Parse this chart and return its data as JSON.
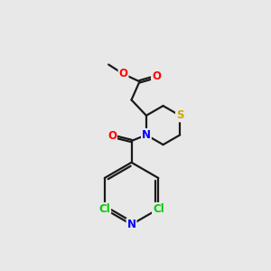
{
  "bg_color": "#e8e8e8",
  "bond_color": "#1a1a1a",
  "atom_colors": {
    "O": "#ff0000",
    "N": "#0000ff",
    "S": "#ccaa00",
    "Cl": "#00cc00",
    "C": "#1a1a1a"
  },
  "font_size": 8.5,
  "bond_width": 1.6,
  "figsize": [
    3.0,
    3.0
  ],
  "dpi": 100
}
